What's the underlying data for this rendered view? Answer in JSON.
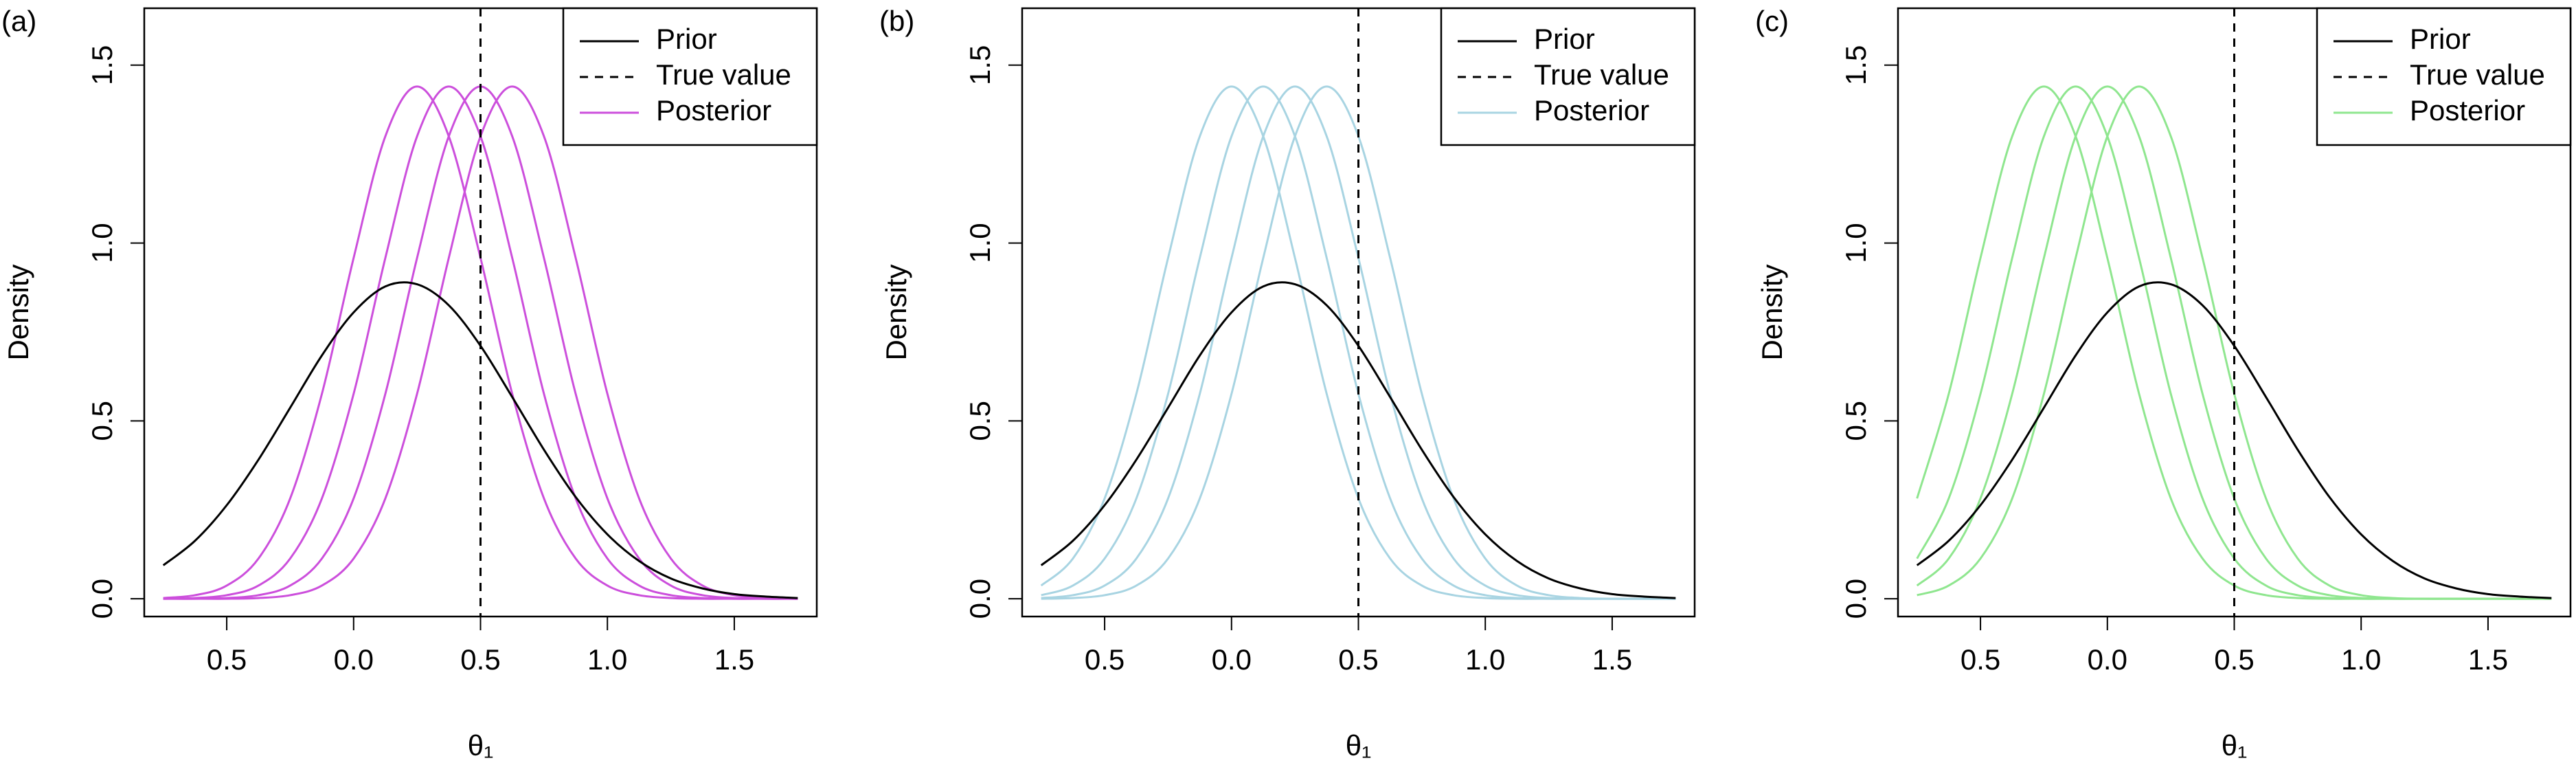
{
  "chart_data": [
    {
      "type": "line",
      "panel_label": "(a)",
      "x_label": "θ₁",
      "y_label": "Density",
      "x": [
        -0.75,
        -0.625,
        -0.5,
        -0.375,
        -0.25,
        -0.125,
        0,
        0.125,
        0.25,
        0.375,
        0.5,
        0.625,
        0.75,
        0.875,
        1,
        1.125,
        1.25,
        1.375,
        1.5,
        1.625,
        1.75
      ],
      "xlim": [
        -0.825,
        1.825
      ],
      "ylim": [
        -0.05,
        1.66
      ],
      "xticks": [
        {
          "value": -0.5,
          "label": "0.5"
        },
        {
          "value": 0,
          "label": "0.0"
        },
        0.5,
        {
          "value": 1,
          "label": "1.0"
        },
        1.5
      ],
      "yticks": [
        {
          "value": 0,
          "label": "0.0"
        },
        0.5,
        {
          "value": 1,
          "label": "1.0"
        },
        1.5
      ],
      "vline": {
        "name": "True value",
        "x": 0.5
      },
      "series": [
        {
          "name": "Prior",
          "color": "#000000",
          "values": [
            0.094,
            0.163,
            0.263,
            0.391,
            0.537,
            0.684,
            0.805,
            0.878,
            0.884,
            0.825,
            0.711,
            0.567,
            0.419,
            0.286,
            0.181,
            0.106,
            0.057,
            0.029,
            0.013,
            0.006,
            0.002
          ]
        },
        {
          "name": "Posterior",
          "color": "#cc4fdc",
          "values": [
            [
              0.002,
              0.01,
              0.037,
              0.113,
              0.282,
              0.576,
              0.958,
              1.3,
              1.44,
              1.3,
              0.958,
              0.576,
              0.282,
              0.113,
              0.037,
              0.01,
              0.002,
              0,
              0,
              0,
              0
            ],
            [
              0,
              0.002,
              0.01,
              0.037,
              0.113,
              0.282,
              0.576,
              0.958,
              1.3,
              1.44,
              1.3,
              0.958,
              0.576,
              0.282,
              0.113,
              0.037,
              0.01,
              0.002,
              0,
              0,
              0
            ],
            [
              0,
              0,
              0.002,
              0.01,
              0.037,
              0.113,
              0.282,
              0.576,
              0.958,
              1.3,
              1.44,
              1.3,
              0.958,
              0.576,
              0.282,
              0.113,
              0.037,
              0.01,
              0.002,
              0,
              0
            ],
            [
              0,
              0,
              0,
              0.002,
              0.01,
              0.037,
              0.113,
              0.282,
              0.576,
              0.958,
              1.3,
              1.44,
              1.3,
              0.958,
              0.576,
              0.282,
              0.113,
              0.037,
              0.01,
              0.002,
              0
            ]
          ]
        }
      ]
    },
    {
      "type": "line",
      "panel_label": "(b)",
      "x_label": "θ₁",
      "y_label": "Density",
      "x": [
        -0.75,
        -0.625,
        -0.5,
        -0.375,
        -0.25,
        -0.125,
        0,
        0.125,
        0.25,
        0.375,
        0.5,
        0.625,
        0.75,
        0.875,
        1,
        1.125,
        1.25,
        1.375,
        1.5,
        1.625,
        1.75
      ],
      "xlim": [
        -0.825,
        1.825
      ],
      "ylim": [
        -0.05,
        1.66
      ],
      "xticks": [
        {
          "value": -0.5,
          "label": "0.5"
        },
        {
          "value": 0,
          "label": "0.0"
        },
        0.5,
        {
          "value": 1,
          "label": "1.0"
        },
        1.5
      ],
      "yticks": [
        {
          "value": 0,
          "label": "0.0"
        },
        0.5,
        {
          "value": 1,
          "label": "1.0"
        },
        1.5
      ],
      "vline": {
        "name": "True value",
        "x": 0.5
      },
      "series": [
        {
          "name": "Prior",
          "color": "#000000",
          "values": [
            0.094,
            0.163,
            0.263,
            0.391,
            0.537,
            0.684,
            0.805,
            0.878,
            0.884,
            0.825,
            0.711,
            0.567,
            0.419,
            0.286,
            0.181,
            0.106,
            0.057,
            0.029,
            0.013,
            0.006,
            0.002
          ]
        },
        {
          "name": "Posterior",
          "color": "#a8d4e2",
          "values": [
            [
              0.037,
              0.113,
              0.282,
              0.576,
              0.958,
              1.3,
              1.44,
              1.3,
              0.958,
              0.576,
              0.282,
              0.113,
              0.037,
              0.01,
              0.002,
              0,
              0,
              0,
              0,
              0,
              0
            ],
            [
              0.01,
              0.037,
              0.113,
              0.282,
              0.576,
              0.958,
              1.3,
              1.44,
              1.3,
              0.958,
              0.576,
              0.282,
              0.113,
              0.037,
              0.01,
              0.002,
              0,
              0,
              0,
              0,
              0
            ],
            [
              0.002,
              0.01,
              0.037,
              0.113,
              0.282,
              0.576,
              0.958,
              1.3,
              1.44,
              1.3,
              0.958,
              0.576,
              0.282,
              0.113,
              0.037,
              0.01,
              0.002,
              0,
              0,
              0,
              0
            ],
            [
              0,
              0.002,
              0.01,
              0.037,
              0.113,
              0.282,
              0.576,
              0.958,
              1.3,
              1.44,
              1.3,
              0.958,
              0.576,
              0.282,
              0.113,
              0.037,
              0.01,
              0.002,
              0,
              0,
              0
            ]
          ]
        }
      ]
    },
    {
      "type": "line",
      "panel_label": "(c)",
      "x_label": "θ₁",
      "y_label": "Density",
      "x": [
        -0.75,
        -0.625,
        -0.5,
        -0.375,
        -0.25,
        -0.125,
        0,
        0.125,
        0.25,
        0.375,
        0.5,
        0.625,
        0.75,
        0.875,
        1,
        1.125,
        1.25,
        1.375,
        1.5,
        1.625,
        1.75
      ],
      "xlim": [
        -0.825,
        1.825
      ],
      "ylim": [
        -0.05,
        1.66
      ],
      "xticks": [
        {
          "value": -0.5,
          "label": "0.5"
        },
        {
          "value": 0,
          "label": "0.0"
        },
        0.5,
        {
          "value": 1,
          "label": "1.0"
        },
        1.5
      ],
      "yticks": [
        {
          "value": 0,
          "label": "0.0"
        },
        0.5,
        {
          "value": 1,
          "label": "1.0"
        },
        1.5
      ],
      "vline": {
        "name": "True value",
        "x": 0.5
      },
      "series": [
        {
          "name": "Prior",
          "color": "#000000",
          "values": [
            0.094,
            0.163,
            0.263,
            0.391,
            0.537,
            0.684,
            0.805,
            0.878,
            0.884,
            0.825,
            0.711,
            0.567,
            0.419,
            0.286,
            0.181,
            0.106,
            0.057,
            0.029,
            0.013,
            0.006,
            0.002
          ]
        },
        {
          "name": "Posterior",
          "color": "#8fe68f",
          "values": [
            [
              0.282,
              0.576,
              0.958,
              1.3,
              1.44,
              1.3,
              0.958,
              0.576,
              0.282,
              0.113,
              0.037,
              0.01,
              0.002,
              0,
              0,
              0,
              0,
              0,
              0,
              0,
              0
            ],
            [
              0.113,
              0.282,
              0.576,
              0.958,
              1.3,
              1.44,
              1.3,
              0.958,
              0.576,
              0.282,
              0.113,
              0.037,
              0.01,
              0.002,
              0,
              0,
              0,
              0,
              0,
              0,
              0
            ],
            [
              0.037,
              0.113,
              0.282,
              0.576,
              0.958,
              1.3,
              1.44,
              1.3,
              0.958,
              0.576,
              0.282,
              0.113,
              0.037,
              0.01,
              0.002,
              0,
              0,
              0,
              0,
              0,
              0
            ],
            [
              0.01,
              0.037,
              0.113,
              0.282,
              0.576,
              0.958,
              1.3,
              1.44,
              1.3,
              0.958,
              0.576,
              0.282,
              0.113,
              0.037,
              0.01,
              0.002,
              0,
              0,
              0,
              0,
              0
            ]
          ]
        }
      ]
    }
  ]
}
